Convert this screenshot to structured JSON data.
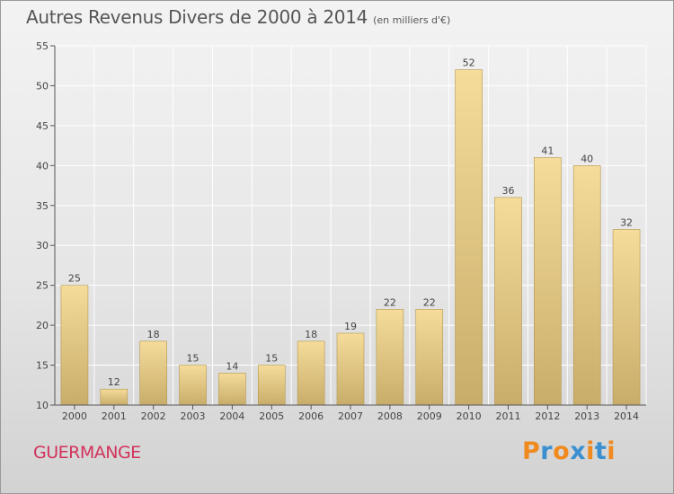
{
  "header": {
    "title": "Autres Revenus Divers de 2000 à 2014",
    "subtitle": "(en milliers d'€)"
  },
  "footer": {
    "place": "GUERMANGE",
    "logo_text": "Proxiti",
    "logo_colors": [
      "#f08a1e",
      "#3a8fd0",
      "#f08a1e",
      "#3a8fd0",
      "#f08a1e",
      "#3a8fd0",
      "#f08a1e"
    ]
  },
  "colors": {
    "bar_light": "#f5dc9a",
    "bar_dark": "#c8ac6a",
    "bar_edge": "#b39650",
    "grid": "#ffffff",
    "axis": "#555555",
    "place": "#d2325a"
  },
  "chart_data": {
    "type": "bar",
    "title": "Autres Revenus Divers de 2000 à 2014",
    "subtitle": "(en milliers d'€)",
    "categories": [
      "2000",
      "2001",
      "2002",
      "2003",
      "2004",
      "2005",
      "2006",
      "2007",
      "2008",
      "2009",
      "2010",
      "2011",
      "2012",
      "2013",
      "2014"
    ],
    "values": [
      25,
      12,
      18,
      15,
      14,
      15,
      18,
      19,
      22,
      22,
      52,
      36,
      41,
      40,
      32
    ],
    "ylim": [
      10,
      55
    ],
    "yticks": [
      10,
      15,
      20,
      25,
      30,
      35,
      40,
      45,
      50,
      55
    ],
    "grid": true,
    "xlabel": "",
    "ylabel": ""
  }
}
